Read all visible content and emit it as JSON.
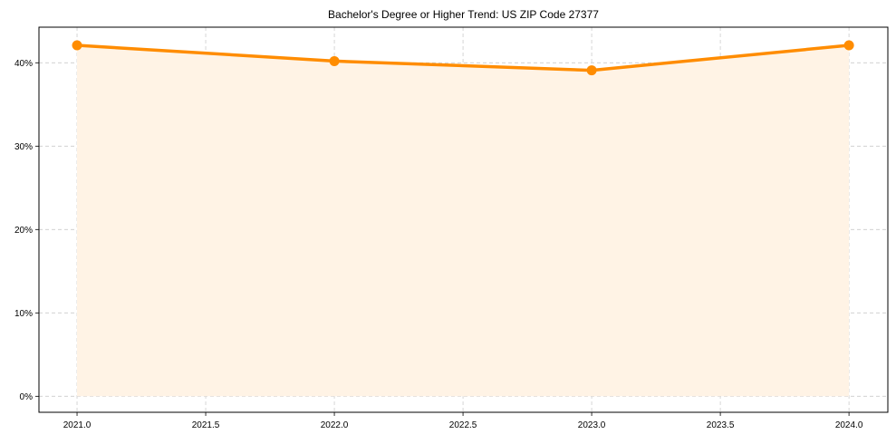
{
  "chart_data": {
    "type": "line",
    "title": "Bachelor's Degree or Higher Trend: US ZIP Code 27377",
    "xlabel": "",
    "ylabel": "",
    "x": [
      2021,
      2022,
      2023,
      2024
    ],
    "series": [
      {
        "name": "Bachelor's Degree or Higher",
        "values": [
          42.1,
          40.2,
          39.1,
          42.1
        ],
        "unit": "%",
        "color": "#ff8c00",
        "fill_color": "#fff3e5",
        "marker": "circle"
      }
    ],
    "xlim": [
      2020.852,
      2024.151
    ],
    "ylim": [
      -1.92,
      44.27
    ],
    "x_ticks": [
      2021.0,
      2021.5,
      2022.0,
      2022.5,
      2023.0,
      2023.5,
      2024.0
    ],
    "x_tick_labels": [
      "2021.0",
      "2021.5",
      "2022.0",
      "2022.5",
      "2023.0",
      "2023.5",
      "2024.0"
    ],
    "y_ticks": [
      0,
      10,
      20,
      30,
      40
    ],
    "y_tick_labels": [
      "0%",
      "10%",
      "20%",
      "30%",
      "40%"
    ],
    "grid": true,
    "grid_style": "dashed",
    "legend": null,
    "area_fill": true
  }
}
